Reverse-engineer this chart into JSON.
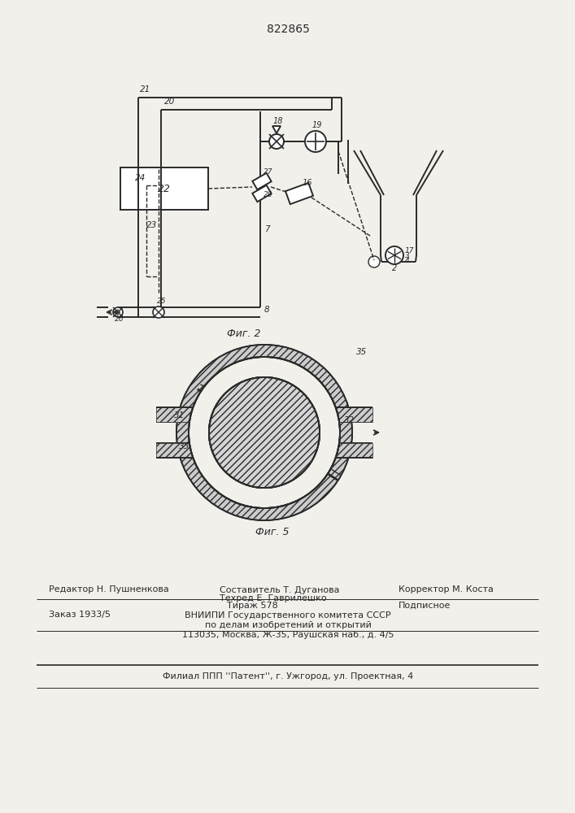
{
  "patent_number": "822865",
  "fig2_label": "Фиг. 2",
  "fig3_label": "Фиг. 5",
  "bg_color": "#f2f0eb",
  "line_color": "#2a2a2a",
  "editor_line": "Редактор Н. Пушненкова",
  "compiler_line1": "Составитель Т. Дуганова",
  "techred_line": "Техред Е. Гаврилешко",
  "corrector_line": "Корректор М. Коста",
  "order_line": "Заказ 1933/5",
  "tirazh_line": "Тираж 578",
  "podpisnoe_line": "Подписное",
  "vniip1": "ВНИИПИ Государственного комитета СССР",
  "vniip2": "по делам изобретений и открытий",
  "vniip3": "113035, Москва, Ж-35, Раушская наб., д. 4/5",
  "filial": "Филиал ППП ''Патент'', г. Ужгород, ул. Проектная, 4"
}
